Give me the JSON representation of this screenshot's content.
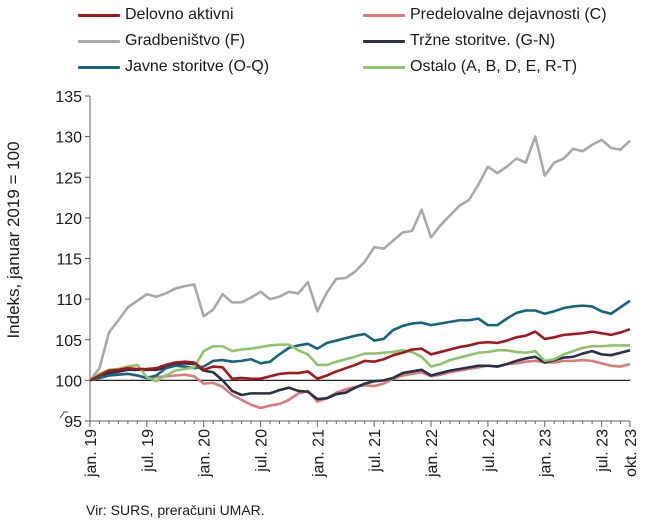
{
  "chart_data": {
    "type": "line",
    "ylabel": "Indeks, januar 2019 = 100",
    "xlabel": "",
    "ylim": [
      95,
      135
    ],
    "y_ticks": [
      95,
      100,
      105,
      110,
      115,
      120,
      125,
      130,
      135
    ],
    "x_months": [
      "2019-01",
      "2019-02",
      "2019-03",
      "2019-04",
      "2019-05",
      "2019-06",
      "2019-07",
      "2019-08",
      "2019-09",
      "2019-10",
      "2019-11",
      "2019-12",
      "2020-01",
      "2020-02",
      "2020-03",
      "2020-04",
      "2020-05",
      "2020-06",
      "2020-07",
      "2020-08",
      "2020-09",
      "2020-10",
      "2020-11",
      "2020-12",
      "2021-01",
      "2021-02",
      "2021-03",
      "2021-04",
      "2021-05",
      "2021-06",
      "2021-07",
      "2021-08",
      "2021-09",
      "2021-10",
      "2021-11",
      "2021-12",
      "2022-01",
      "2022-02",
      "2022-03",
      "2022-04",
      "2022-05",
      "2022-06",
      "2022-07",
      "2022-08",
      "2022-09",
      "2022-10",
      "2022-11",
      "2022-12",
      "2023-01",
      "2023-02",
      "2023-03",
      "2023-04",
      "2023-05",
      "2023-06",
      "2023-07",
      "2023-08",
      "2023-09",
      "2023-10"
    ],
    "x_tick_labels": [
      {
        "month": "2019-01",
        "label": "jan. 19"
      },
      {
        "month": "2019-07",
        "label": "jul. 19"
      },
      {
        "month": "2020-01",
        "label": "jan. 20"
      },
      {
        "month": "2020-07",
        "label": "jul. 20"
      },
      {
        "month": "2021-01",
        "label": "jan. 21"
      },
      {
        "month": "2021-07",
        "label": "jul. 21"
      },
      {
        "month": "2022-01",
        "label": "jan. 22"
      },
      {
        "month": "2022-07",
        "label": "jul. 22"
      },
      {
        "month": "2023-01",
        "label": "jan. 23"
      },
      {
        "month": "2023-07",
        "label": "jul. 23"
      },
      {
        "month": "2023-10",
        "label": "okt. 23"
      }
    ],
    "reference_line": 100,
    "legend_position": "top",
    "series": [
      {
        "name": "Delovno aktivni",
        "color": "#a5161d",
        "values": [
          100,
          100.6,
          101.2,
          101.3,
          101.5,
          101.4,
          101.4,
          101.5,
          101.9,
          102.2,
          102.3,
          102.2,
          101.3,
          101.7,
          101.6,
          100.2,
          100.3,
          100.2,
          100.2,
          100.5,
          100.8,
          100.9,
          100.9,
          101.1,
          100.2,
          100.6,
          101.1,
          101.5,
          101.9,
          102.4,
          102.3,
          102.6,
          103.1,
          103.4,
          103.8,
          103.9,
          103.2,
          103.5,
          103.8,
          104.1,
          104.3,
          104.6,
          104.7,
          104.6,
          104.9,
          105.3,
          105.5,
          106.0,
          105.1,
          105.3,
          105.6,
          105.7,
          105.8,
          106.0,
          105.8,
          105.6,
          105.9,
          106.3
        ]
      },
      {
        "name": "Predelovalne dejavnosti (C)",
        "color": "#e07a7a",
        "values": [
          100,
          100.3,
          100.6,
          100.8,
          100.8,
          100.6,
          100.3,
          100.4,
          100.5,
          100.6,
          100.7,
          100.5,
          99.6,
          99.7,
          99.2,
          98.2,
          97.6,
          97.0,
          96.6,
          96.9,
          97.1,
          97.6,
          98.4,
          98.7,
          97.4,
          97.8,
          98.5,
          98.9,
          99.2,
          99.4,
          99.3,
          99.6,
          100.2,
          100.6,
          100.8,
          101.0,
          100.5,
          100.7,
          101.0,
          101.2,
          101.4,
          101.6,
          101.8,
          101.7,
          102.0,
          102.1,
          102.3,
          102.4,
          102.2,
          102.2,
          102.4,
          102.4,
          102.5,
          102.4,
          102.1,
          101.8,
          101.7,
          102.0
        ]
      },
      {
        "name": "Gradbeništvo (F)",
        "color": "#a7a9ac",
        "values": [
          100,
          101.5,
          105.9,
          107.4,
          109.0,
          109.8,
          110.6,
          110.3,
          110.7,
          111.3,
          111.6,
          111.8,
          107.9,
          108.7,
          110.6,
          109.6,
          109.6,
          110.2,
          110.9,
          110.0,
          110.3,
          110.9,
          110.7,
          112.1,
          108.5,
          110.8,
          112.5,
          112.6,
          113.4,
          114.6,
          116.4,
          116.2,
          117.2,
          118.2,
          118.4,
          121.0,
          117.6,
          119.1,
          120.3,
          121.5,
          122.2,
          124.1,
          126.3,
          125.5,
          126.3,
          127.3,
          126.8,
          130.0,
          125.2,
          126.8,
          127.3,
          128.5,
          128.2,
          129.0,
          129.6,
          128.6,
          128.4,
          129.5
        ]
      },
      {
        "name": "Tržne storitve. (G-N)",
        "color": "#2a2f4a",
        "values": [
          100,
          100.5,
          100.9,
          101.1,
          101.3,
          101.3,
          101.3,
          101.3,
          101.6,
          102.0,
          102.1,
          102.0,
          101.2,
          101.0,
          100.0,
          98.7,
          98.2,
          98.4,
          98.4,
          98.4,
          98.8,
          99.1,
          98.7,
          98.6,
          97.7,
          97.8,
          98.3,
          98.5,
          99.1,
          99.6,
          99.9,
          100.0,
          100.3,
          100.9,
          101.1,
          101.3,
          100.6,
          100.9,
          101.2,
          101.4,
          101.6,
          101.8,
          101.8,
          101.7,
          102.0,
          102.4,
          102.7,
          102.9,
          102.2,
          102.5,
          102.8,
          102.9,
          103.3,
          103.6,
          103.2,
          103.1,
          103.4,
          103.7
        ]
      },
      {
        "name": "Javne storitve (O-Q)",
        "color": "#16677d",
        "values": [
          100,
          100.3,
          100.6,
          100.7,
          100.8,
          100.6,
          100.3,
          100.6,
          101.5,
          101.8,
          101.7,
          101.5,
          101.7,
          102.4,
          102.5,
          102.3,
          102.4,
          102.6,
          102.1,
          102.3,
          103.2,
          104.0,
          104.3,
          104.5,
          103.9,
          104.6,
          104.9,
          105.2,
          105.5,
          105.7,
          104.9,
          105.1,
          106.2,
          106.7,
          107.0,
          107.1,
          106.8,
          107.0,
          107.2,
          107.4,
          107.4,
          107.6,
          106.8,
          106.8,
          107.6,
          108.3,
          108.6,
          108.6,
          108.2,
          108.5,
          108.9,
          109.1,
          109.2,
          109.1,
          108.5,
          108.2,
          109.0,
          109.8
        ]
      },
      {
        "name": "Ostalo (A, B, D, E, R-T)",
        "color": "#8cc56b",
        "values": [
          100,
          100.8,
          101.3,
          101.4,
          101.7,
          101.9,
          100.4,
          99.9,
          100.6,
          101.2,
          101.4,
          101.6,
          103.6,
          104.2,
          104.2,
          103.6,
          103.8,
          103.9,
          104.1,
          104.3,
          104.4,
          104.4,
          103.7,
          103.2,
          101.9,
          101.9,
          102.3,
          102.6,
          102.9,
          103.3,
          103.3,
          103.4,
          103.5,
          103.7,
          103.5,
          102.9,
          101.7,
          102.0,
          102.5,
          102.8,
          103.1,
          103.4,
          103.5,
          103.7,
          103.7,
          103.5,
          103.4,
          103.6,
          102.4,
          102.6,
          103.2,
          103.6,
          104.0,
          104.2,
          104.2,
          104.3,
          104.3,
          104.3
        ]
      }
    ]
  },
  "source_note": "Vir: SURS, preračuni UMAR."
}
